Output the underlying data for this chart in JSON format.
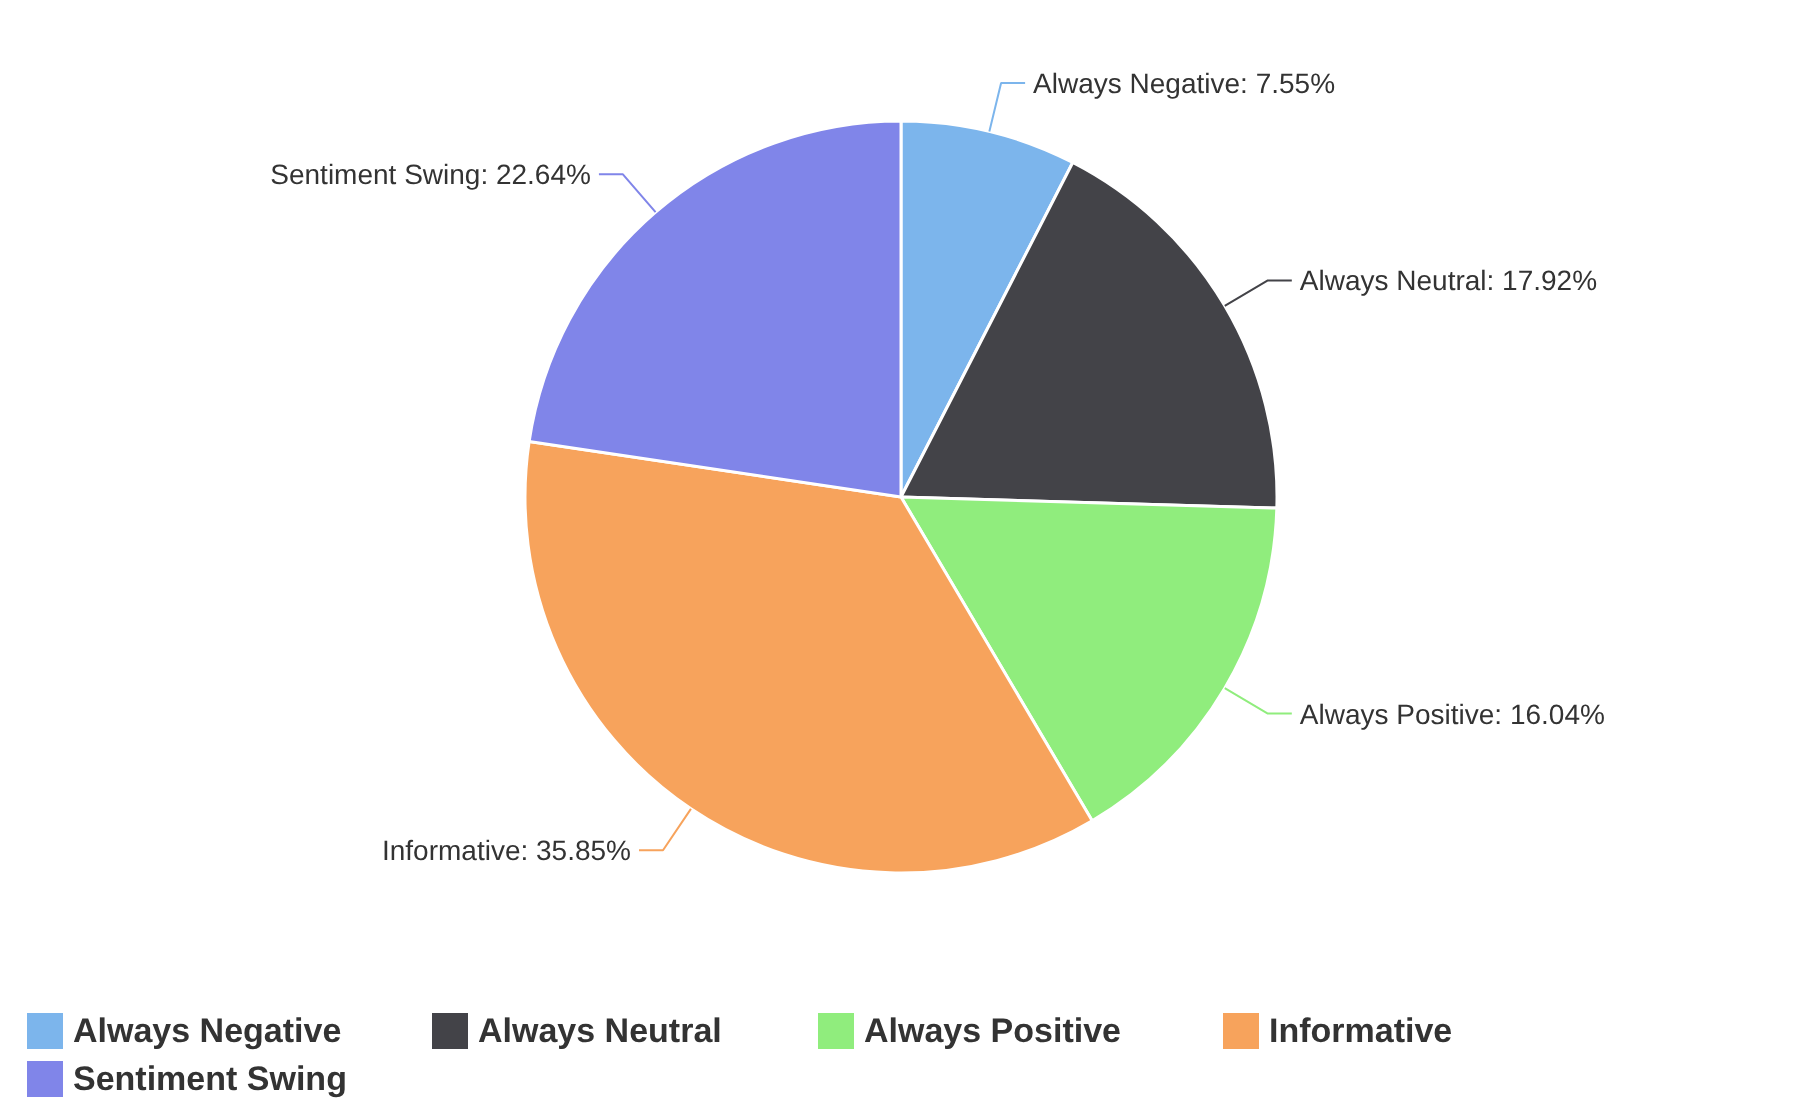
{
  "chart_data": {
    "type": "pie",
    "categories": [
      "Always Negative",
      "Always Neutral",
      "Always Positive",
      "Informative",
      "Sentiment Swing"
    ],
    "values": [
      7.55,
      17.92,
      16.04,
      35.85,
      22.64
    ],
    "value_labels": [
      "Always Negative: 7.55%",
      "Always Neutral: 17.92%",
      "Always Positive: 16.04%",
      "Informative: 35.85%",
      "Sentiment Swing: 22.64%"
    ],
    "colors": [
      "#7cb5ec",
      "#434348",
      "#90ed7d",
      "#f7a35c",
      "#8085e9"
    ],
    "legend": "bottom"
  }
}
